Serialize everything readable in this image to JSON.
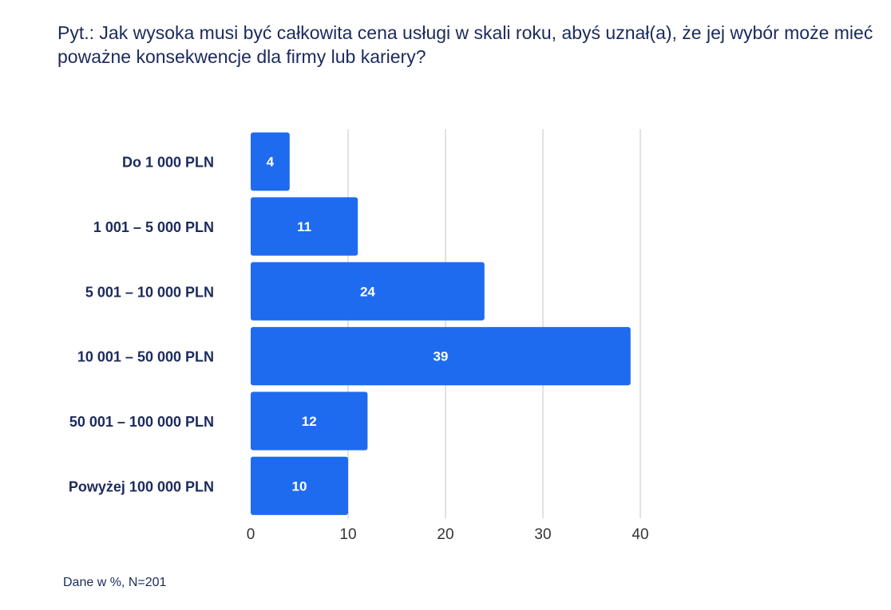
{
  "title_lines": [
    "Pyt.: Jak wysoka musi być całkowita cena usługi w skali roku, abyś uznał(a), że jej wybór może mieć",
    "poważne konsekwencje dla firmy lub kariery?"
  ],
  "footnote": "Dane w %, N=201",
  "colors": {
    "bar": "#1f6bef",
    "text": "#1b2a5c",
    "grid": "#d9d9d9",
    "label_on_bar": "#ffffff"
  },
  "chart_data": {
    "type": "bar",
    "orientation": "horizontal",
    "categories": [
      "Do 1 000 PLN",
      "1 001 – 5 000 PLN",
      "5 001 – 10 000 PLN",
      "10 001 – 50 000 PLN",
      "50 001 – 100 000 PLN",
      "Powyżej 100 000 PLN"
    ],
    "values": [
      4,
      11,
      24,
      39,
      12,
      10
    ],
    "xlim": [
      0,
      40
    ],
    "xticks": [
      0,
      10,
      20,
      30,
      40
    ],
    "grid": true,
    "data_labels": true
  }
}
